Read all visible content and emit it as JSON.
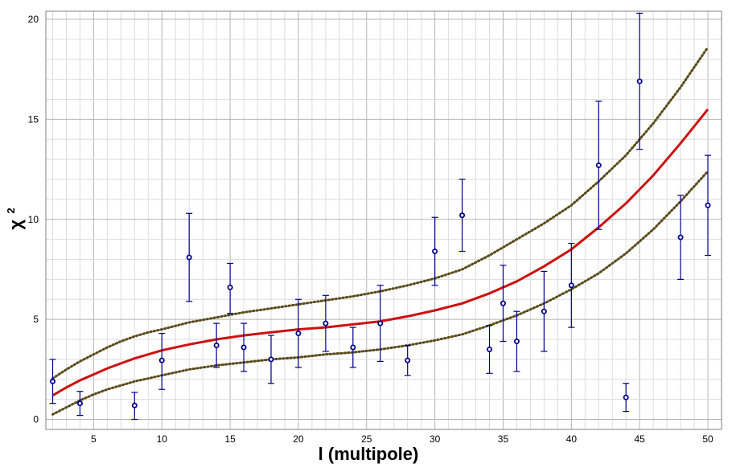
{
  "chart_data": {
    "type": "scatter",
    "xlabel": "l (multipole)",
    "ylabel_main": "χ",
    "ylabel_exp": "2",
    "xlim": [
      1.5,
      51
    ],
    "ylim": [
      -0.5,
      20.4
    ],
    "x_ticks": [
      5,
      10,
      15,
      20,
      25,
      30,
      35,
      40,
      45,
      50
    ],
    "y_ticks": [
      0,
      5,
      10,
      15,
      20
    ],
    "grid": true,
    "colors": {
      "points": "#00008b",
      "fit": "#cc1111",
      "bounds": "#5a4a1a",
      "grid_major": "#b4b4b4",
      "grid_minor": "#dcdcdc"
    },
    "points": [
      {
        "x": 2,
        "y": 1.9,
        "lo": 0.8,
        "hi": 3.0
      },
      {
        "x": 4,
        "y": 0.8,
        "lo": 0.2,
        "hi": 1.4
      },
      {
        "x": 8,
        "y": 0.7,
        "lo": 0.0,
        "hi": 1.35
      },
      {
        "x": 10,
        "y": 2.95,
        "lo": 1.5,
        "hi": 4.3
      },
      {
        "x": 12,
        "y": 8.1,
        "lo": 5.9,
        "hi": 10.3
      },
      {
        "x": 14,
        "y": 3.7,
        "lo": 2.6,
        "hi": 4.8
      },
      {
        "x": 15,
        "y": 6.6,
        "lo": 5.3,
        "hi": 7.8
      },
      {
        "x": 16,
        "y": 3.6,
        "lo": 2.4,
        "hi": 4.8
      },
      {
        "x": 18,
        "y": 3.0,
        "lo": 1.8,
        "hi": 4.2
      },
      {
        "x": 20,
        "y": 4.3,
        "lo": 2.6,
        "hi": 6.0
      },
      {
        "x": 22,
        "y": 4.8,
        "lo": 3.4,
        "hi": 6.2
      },
      {
        "x": 24,
        "y": 3.6,
        "lo": 2.6,
        "hi": 4.6
      },
      {
        "x": 26,
        "y": 4.8,
        "lo": 2.9,
        "hi": 6.7
      },
      {
        "x": 28,
        "y": 2.95,
        "lo": 2.2,
        "hi": 3.7
      },
      {
        "x": 30,
        "y": 8.4,
        "lo": 6.7,
        "hi": 10.1
      },
      {
        "x": 32,
        "y": 10.2,
        "lo": 8.4,
        "hi": 12.0
      },
      {
        "x": 34,
        "y": 3.5,
        "lo": 2.3,
        "hi": 4.7
      },
      {
        "x": 35,
        "y": 5.8,
        "lo": 3.9,
        "hi": 7.7
      },
      {
        "x": 36,
        "y": 3.9,
        "lo": 2.4,
        "hi": 5.4
      },
      {
        "x": 38,
        "y": 5.4,
        "lo": 3.4,
        "hi": 7.4
      },
      {
        "x": 40,
        "y": 6.7,
        "lo": 4.6,
        "hi": 8.8
      },
      {
        "x": 42,
        "y": 12.7,
        "lo": 9.5,
        "hi": 15.9
      },
      {
        "x": 44,
        "y": 1.1,
        "lo": 0.4,
        "hi": 1.8
      },
      {
        "x": 45,
        "y": 16.9,
        "lo": 13.5,
        "hi": 20.3
      },
      {
        "x": 48,
        "y": 9.1,
        "lo": 7.0,
        "hi": 11.2
      },
      {
        "x": 50,
        "y": 10.7,
        "lo": 8.2,
        "hi": 13.2
      }
    ],
    "fit_curve": {
      "x": [
        2,
        3,
        4,
        5,
        6,
        7,
        8,
        9,
        10,
        12,
        14,
        16,
        18,
        20,
        22,
        24,
        26,
        28,
        30,
        32,
        34,
        36,
        38,
        40,
        42,
        44,
        46,
        48,
        50
      ],
      "y": [
        1.2,
        1.6,
        1.95,
        2.25,
        2.55,
        2.8,
        3.05,
        3.25,
        3.45,
        3.75,
        4.0,
        4.2,
        4.35,
        4.5,
        4.6,
        4.75,
        4.9,
        5.15,
        5.45,
        5.8,
        6.3,
        6.9,
        7.65,
        8.5,
        9.6,
        10.8,
        12.2,
        13.8,
        15.5
      ]
    },
    "upper_bound": {
      "x": [
        2,
        3,
        4,
        5,
        6,
        7,
        8,
        9,
        10,
        12,
        14,
        16,
        18,
        20,
        22,
        24,
        26,
        28,
        30,
        32,
        34,
        36,
        38,
        40,
        42,
        44,
        46,
        48,
        50
      ],
      "y": [
        2.05,
        2.5,
        2.9,
        3.25,
        3.6,
        3.9,
        4.15,
        4.35,
        4.5,
        4.85,
        5.1,
        5.35,
        5.55,
        5.75,
        5.95,
        6.15,
        6.4,
        6.7,
        7.05,
        7.5,
        8.2,
        9.0,
        9.8,
        10.7,
        11.9,
        13.2,
        14.8,
        16.6,
        18.6
      ]
    },
    "lower_bound": {
      "x": [
        2,
        3,
        4,
        5,
        6,
        7,
        8,
        9,
        10,
        12,
        14,
        16,
        18,
        20,
        22,
        24,
        26,
        28,
        30,
        32,
        34,
        36,
        38,
        40,
        42,
        44,
        46,
        48,
        50
      ],
      "y": [
        0.25,
        0.6,
        0.95,
        1.25,
        1.5,
        1.7,
        1.9,
        2.05,
        2.2,
        2.5,
        2.7,
        2.85,
        3.0,
        3.1,
        3.25,
        3.35,
        3.5,
        3.7,
        3.95,
        4.25,
        4.7,
        5.2,
        5.8,
        6.5,
        7.3,
        8.3,
        9.5,
        10.9,
        12.4
      ]
    }
  }
}
